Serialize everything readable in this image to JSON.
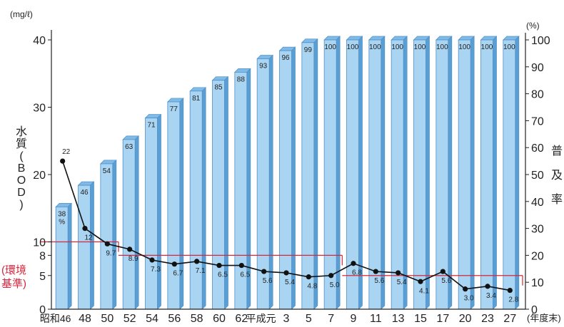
{
  "chart_data": {
    "type": "bar+line",
    "categories": [
      "昭和46",
      "48",
      "50",
      "52",
      "54",
      "56",
      "58",
      "60",
      "62",
      "平成元",
      "3",
      "5",
      "7",
      "9",
      "11",
      "13",
      "15",
      "17",
      "20",
      "23",
      "27"
    ],
    "categories_note": "x tick labels",
    "x_unit": "(年度末)",
    "left_axis": {
      "unit": "(mg/ℓ)",
      "ylabel_chars": [
        "水",
        "質",
        "(",
        "B",
        "O",
        "D",
        ")"
      ],
      "ticks": [
        "40",
        "30",
        "20",
        "10",
        "8",
        "5",
        "0"
      ],
      "ylim": [
        0,
        40
      ]
    },
    "right_axis": {
      "unit": "(%)",
      "ylabel_chars": [
        "普",
        "及",
        "率"
      ],
      "ticks": [
        "100",
        "90",
        "80",
        "70",
        "60",
        "50",
        "40",
        "30",
        "20",
        "10",
        "0"
      ],
      "ylim": [
        0,
        100
      ]
    },
    "series": [
      {
        "name": "普及率",
        "kind": "bar",
        "axis": "right",
        "values": [
          38,
          46,
          54,
          63,
          71,
          77,
          81,
          85,
          88,
          93,
          96,
          99,
          100,
          100,
          100,
          100,
          100,
          100,
          100,
          100,
          100
        ],
        "labels": [
          "38\n%",
          "46",
          "54",
          "63",
          "71",
          "77",
          "81",
          "85",
          "88",
          "93",
          "96",
          "99",
          "100",
          "100",
          "100",
          "100",
          "100",
          "100",
          "100",
          "100",
          "100"
        ]
      },
      {
        "name": "水質(BOD)",
        "kind": "line",
        "axis": "left",
        "values": [
          22,
          12,
          9.7,
          8.9,
          7.3,
          6.7,
          7.1,
          6.5,
          6.5,
          5.6,
          5.4,
          4.8,
          5.0,
          6.8,
          5.6,
          5.4,
          4.1,
          5.6,
          3.0,
          3.4,
          2.8
        ],
        "labels": [
          "22",
          "12",
          "9.7",
          "8.9",
          "7.3",
          "6.7",
          "7.1",
          "6.5",
          "6.5",
          "5.6",
          "5.4",
          "4.8",
          "5.0",
          "6.8",
          "5.6",
          "5.4",
          "4.1",
          "5.6",
          "3.0",
          "3.4",
          "2.8"
        ]
      }
    ],
    "standard": {
      "label_lines": [
        "(環境",
        "基準)"
      ],
      "levels": [
        {
          "value": 10,
          "from": "昭和46",
          "to": "50"
        },
        {
          "value": 8,
          "from": "52",
          "to": "7"
        },
        {
          "value": 5,
          "from": "9",
          "to": "27"
        }
      ],
      "color": "#d7263d"
    },
    "colors": {
      "bar": "#a9d4f2",
      "bar_edge": "#4f8fc9",
      "line": "#111111",
      "standard": "#d7263d"
    },
    "grid": false,
    "legend": "none"
  }
}
